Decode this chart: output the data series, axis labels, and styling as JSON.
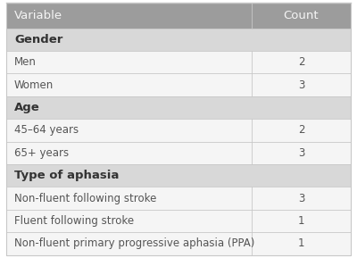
{
  "header": [
    "Variable",
    "Count"
  ],
  "sections": [
    {
      "section_label": "Gender",
      "rows": [
        {
          "label": "Men",
          "count": "2"
        },
        {
          "label": "Women",
          "count": "3"
        }
      ]
    },
    {
      "section_label": "Age",
      "rows": [
        {
          "label": "45–64 years",
          "count": "2"
        },
        {
          "label": "65+ years",
          "count": "3"
        }
      ]
    },
    {
      "section_label": "Type of aphasia",
      "rows": [
        {
          "label": "Non-fluent following stroke",
          "count": "3"
        },
        {
          "label": "Fluent following stroke",
          "count": "1"
        },
        {
          "label": "Non-fluent primary progressive aphasia (PPA)",
          "count": "1"
        }
      ]
    }
  ],
  "header_bg": "#9c9c9c",
  "section_bg": "#d8d8d8",
  "row_bg": "#f5f5f5",
  "header_text_color": "#f5f5f5",
  "section_text_color": "#333333",
  "row_text_color": "#555555",
  "border_color": "#c8c8c8",
  "col_split": 0.705,
  "header_fontsize": 9.5,
  "section_fontsize": 9.5,
  "row_fontsize": 8.5,
  "fig_width": 4.0,
  "fig_height": 2.89,
  "dpi": 100
}
